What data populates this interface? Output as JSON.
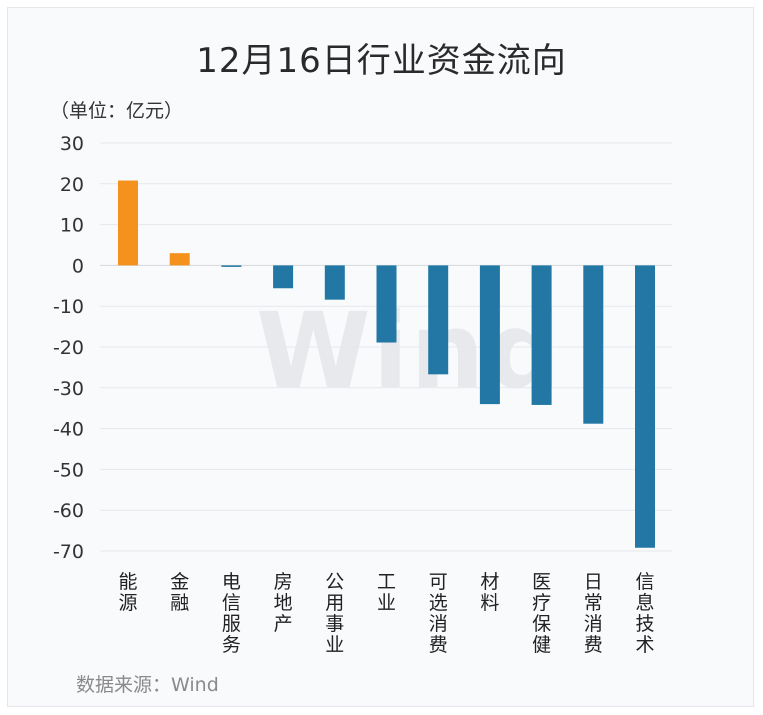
{
  "chart_data": {
    "type": "bar",
    "title": "12月16日行业资金流向",
    "unit_label": "（单位：亿元）",
    "source": "数据来源：Wind",
    "watermark": "Wind",
    "categories": [
      "能源",
      "金融",
      "电信服务",
      "房地产",
      "公用事业",
      "工业",
      "可选消费",
      "材料",
      "医疗保健",
      "日常消费",
      "信息技术"
    ],
    "values": [
      20.8,
      3.0,
      -0.2,
      -5.6,
      -8.4,
      -18.9,
      -26.7,
      -34.0,
      -34.2,
      -38.8,
      -69.2
    ],
    "y_ticks": [
      30,
      20,
      10,
      0,
      -10,
      -20,
      -30,
      -40,
      -50,
      -60,
      -70
    ],
    "ylim": [
      -70,
      30
    ],
    "grid": true,
    "colors": {
      "positive": "#f5921e",
      "negative": "#2277a4"
    }
  }
}
